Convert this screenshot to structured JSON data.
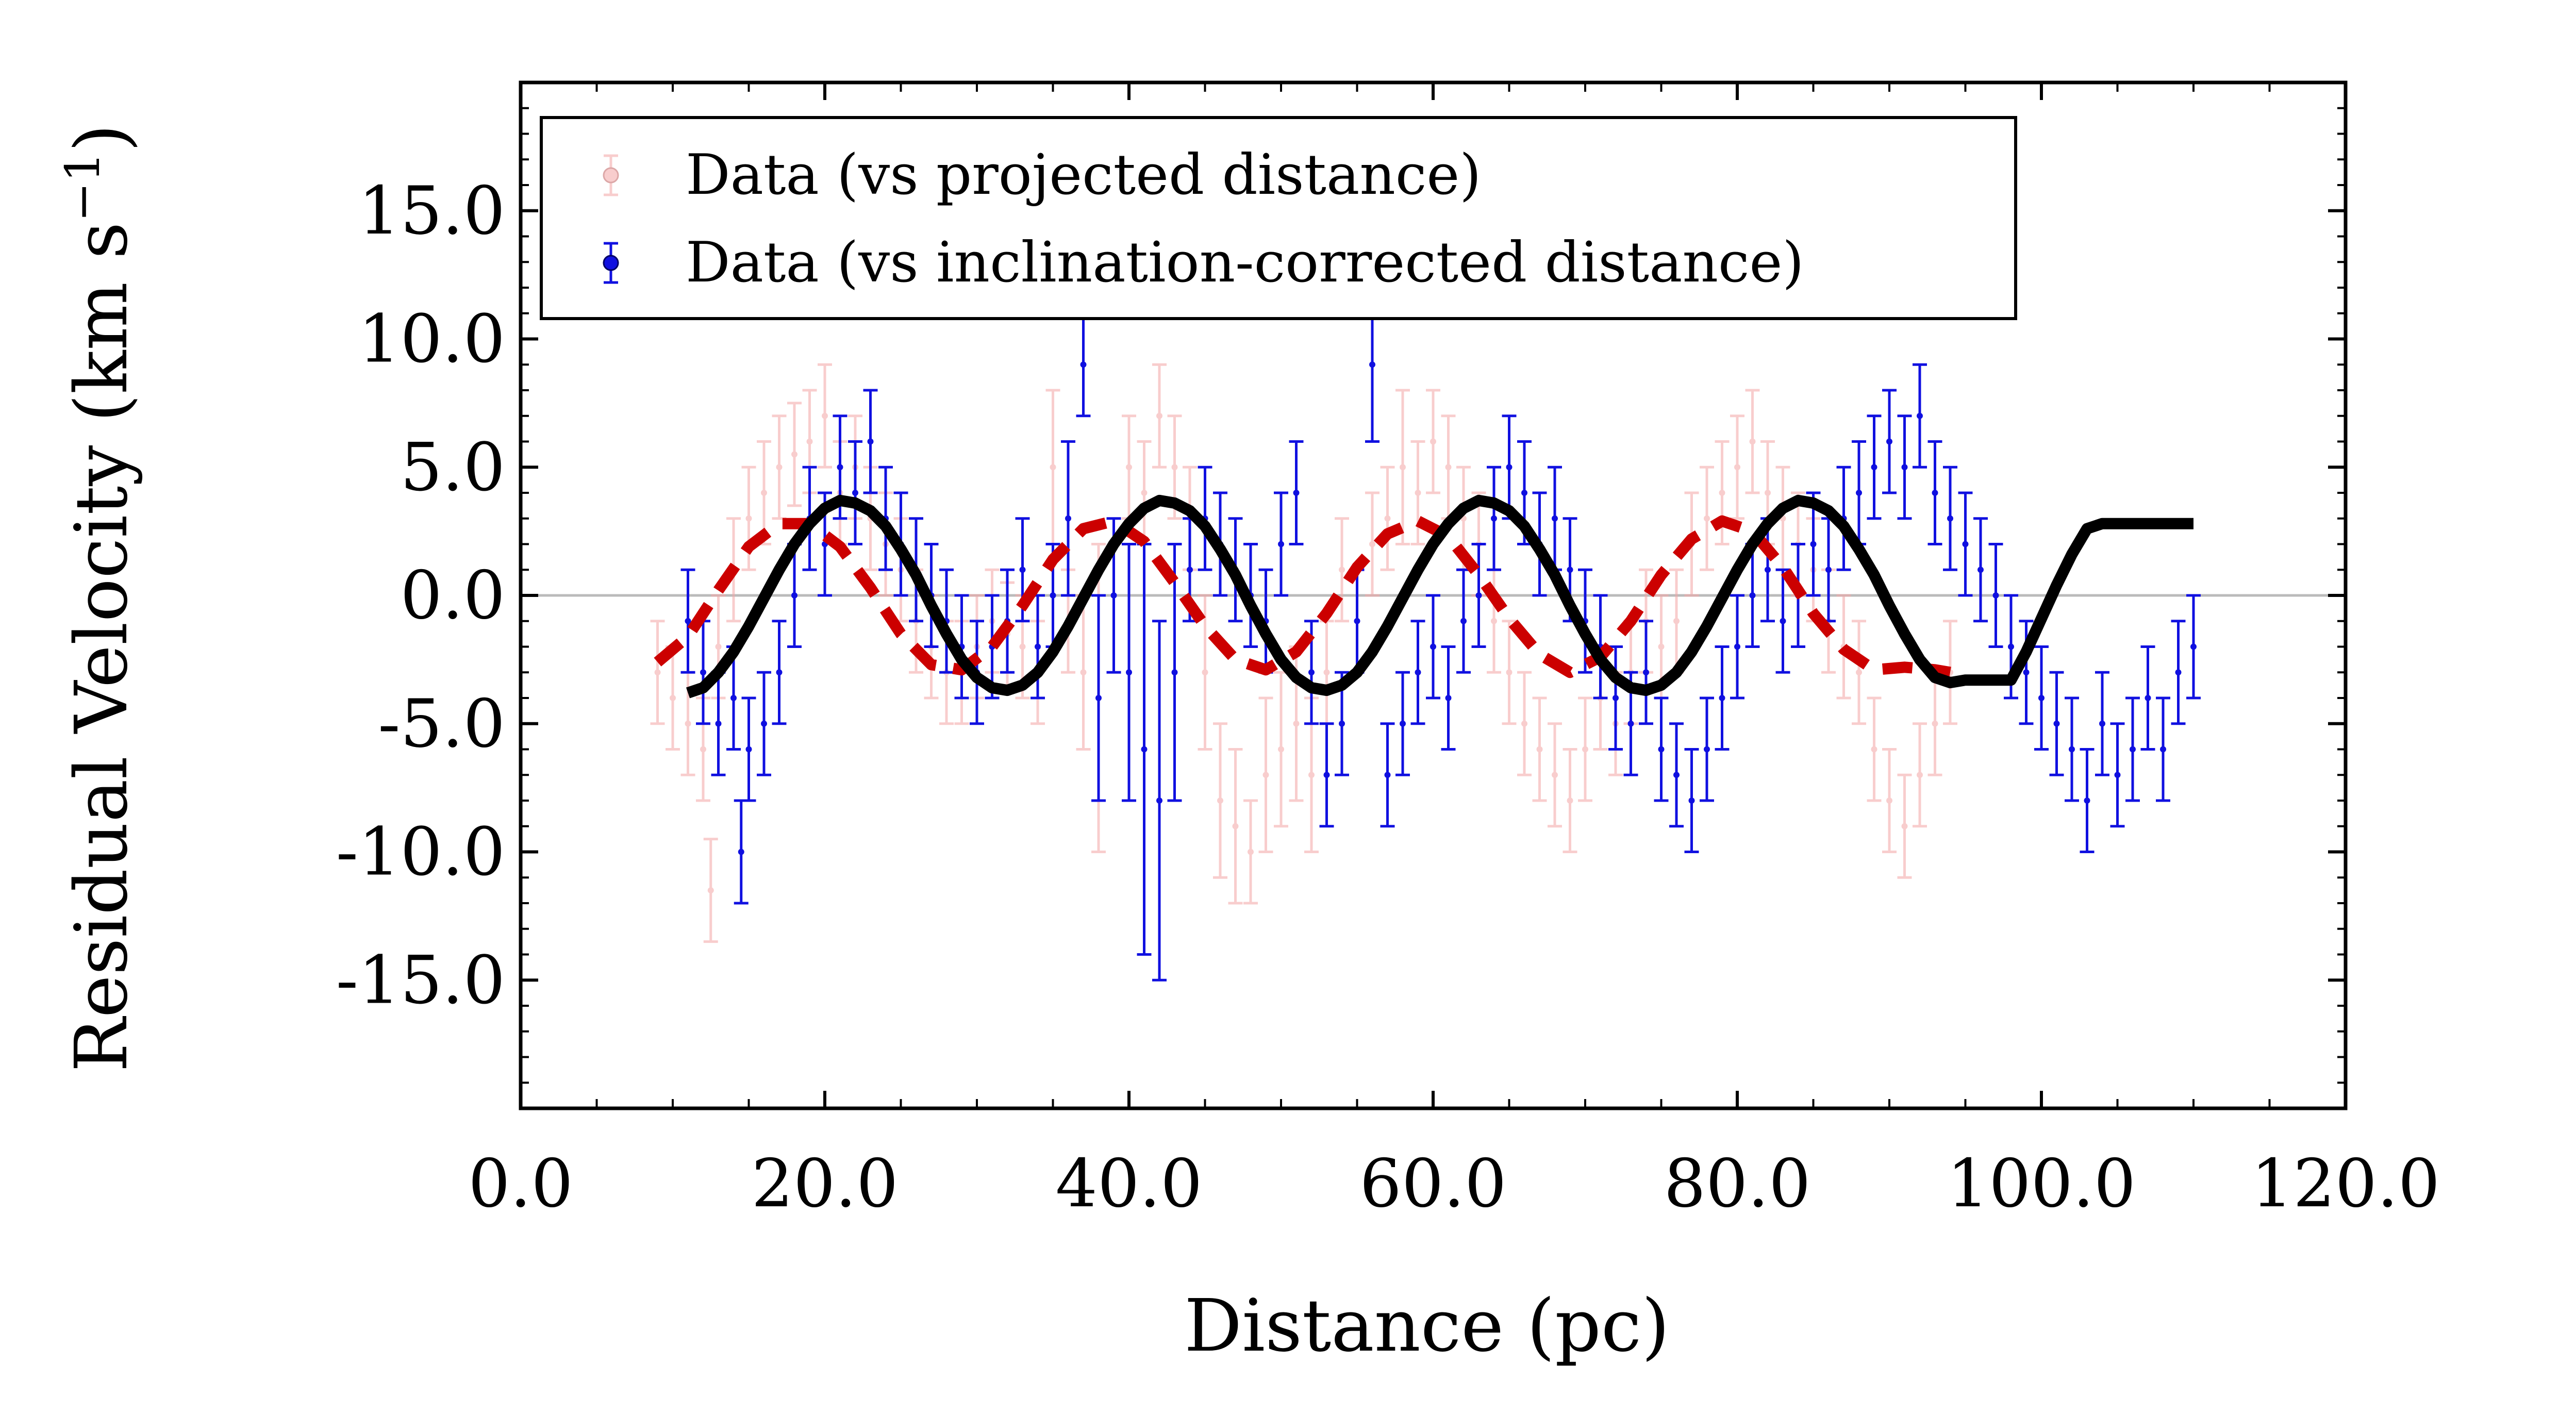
{
  "chart_data": {
    "type": "scatter",
    "xlabel": "Distance (pc)",
    "ylabel_main": "Residual Velocity (km s",
    "ylabel_sup": "−1",
    "ylabel_close": ")",
    "xlim": [
      0,
      120
    ],
    "ylim": [
      -20,
      20
    ],
    "xticks": [
      "0.0",
      "20.0",
      "40.0",
      "60.0",
      "80.0",
      "100.0",
      "120.0"
    ],
    "yticks": [
      "15.0",
      "10.0",
      "5.0",
      "0.0",
      "-5.0",
      "-10.0",
      "-15.0"
    ],
    "ytick_values": [
      15,
      10,
      5,
      0,
      -5,
      -10,
      -15
    ],
    "xtick_values": [
      0,
      20,
      40,
      60,
      80,
      100,
      120
    ],
    "zero_line": 0,
    "legend": {
      "placement": "top-left",
      "entries": [
        {
          "label": "Data (vs projected distance)",
          "color": "#f4a6a6"
        },
        {
          "label": "Data (vs inclination-corrected distance)",
          "color": "#1010e0"
        }
      ]
    },
    "series": [
      {
        "name": "Data (vs projected distance)",
        "color": "#f4a6a6",
        "points": [
          [
            9,
            -3,
            2
          ],
          [
            10,
            -4,
            2
          ],
          [
            11,
            -5,
            2
          ],
          [
            12,
            -6,
            2
          ],
          [
            12.5,
            -11.5,
            2
          ],
          [
            13,
            -2,
            2
          ],
          [
            14,
            1,
            2
          ],
          [
            15,
            3,
            2
          ],
          [
            16,
            4,
            2
          ],
          [
            17,
            5,
            2
          ],
          [
            18,
            5.5,
            2
          ],
          [
            19,
            6,
            2
          ],
          [
            20,
            7,
            2
          ],
          [
            21,
            4,
            2
          ],
          [
            22,
            5,
            2
          ],
          [
            23,
            3,
            2
          ],
          [
            24,
            2,
            2
          ],
          [
            25,
            1,
            2
          ],
          [
            26,
            -1,
            2
          ],
          [
            27,
            -2,
            2
          ],
          [
            28,
            -3,
            2
          ],
          [
            29,
            -3,
            2
          ],
          [
            30,
            -2,
            2
          ],
          [
            31,
            -1,
            2
          ],
          [
            32,
            -1.5,
            2
          ],
          [
            33,
            -2,
            2
          ],
          [
            34,
            -3,
            2
          ],
          [
            35,
            5,
            3
          ],
          [
            36,
            -1,
            2
          ],
          [
            37,
            -3,
            3
          ],
          [
            38,
            -4,
            6
          ],
          [
            39,
            0,
            3
          ],
          [
            40,
            5,
            2
          ],
          [
            41,
            4,
            2
          ],
          [
            42,
            7,
            2
          ],
          [
            43,
            5,
            2
          ],
          [
            44,
            3,
            2
          ],
          [
            45,
            -3,
            3
          ],
          [
            46,
            -8,
            3
          ],
          [
            47,
            -9,
            3
          ],
          [
            48,
            -10,
            2
          ],
          [
            49,
            -7,
            3
          ],
          [
            50,
            -6,
            3
          ],
          [
            51,
            -5,
            3
          ],
          [
            52,
            -7,
            3
          ],
          [
            53,
            -3,
            2
          ],
          [
            54,
            1,
            2
          ],
          [
            55,
            -1,
            2
          ],
          [
            56,
            2,
            2
          ],
          [
            57,
            3,
            2
          ],
          [
            58,
            5,
            3
          ],
          [
            59,
            4,
            2
          ],
          [
            60,
            6,
            2
          ],
          [
            61,
            5,
            2
          ],
          [
            62,
            3,
            2
          ],
          [
            63,
            2,
            2
          ],
          [
            64,
            -1,
            2
          ],
          [
            65,
            -3,
            2
          ],
          [
            66,
            -5,
            2
          ],
          [
            67,
            -6,
            2
          ],
          [
            68,
            -7,
            2
          ],
          [
            69,
            -8,
            2
          ],
          [
            70,
            -6,
            2
          ],
          [
            71,
            -4,
            2
          ],
          [
            72,
            -5,
            2
          ],
          [
            73,
            -3,
            2
          ],
          [
            74,
            -1,
            2
          ],
          [
            75,
            -2,
            2
          ],
          [
            76,
            -1,
            2
          ],
          [
            77,
            2,
            2
          ],
          [
            78,
            3,
            2
          ],
          [
            79,
            4,
            2
          ],
          [
            80,
            5,
            2
          ],
          [
            81,
            6,
            2
          ],
          [
            82,
            4,
            2
          ],
          [
            83,
            3,
            2
          ],
          [
            84,
            2,
            2
          ],
          [
            85,
            1,
            2
          ],
          [
            86,
            -1,
            2
          ],
          [
            87,
            -2,
            2
          ],
          [
            88,
            -3,
            2
          ],
          [
            89,
            -6,
            2
          ],
          [
            90,
            -8,
            2
          ],
          [
            91,
            -9,
            2
          ],
          [
            92,
            -7,
            2
          ],
          [
            93,
            -5,
            2
          ],
          [
            94,
            -3,
            2
          ]
        ]
      },
      {
        "name": "Data (vs inclination-corrected distance)",
        "color": "#1010e0",
        "points": [
          [
            11,
            -1,
            2
          ],
          [
            12,
            -3,
            2
          ],
          [
            13,
            -5,
            2
          ],
          [
            14,
            -4,
            2
          ],
          [
            14.5,
            -10,
            2
          ],
          [
            15,
            -6,
            2
          ],
          [
            16,
            -5,
            2
          ],
          [
            17,
            -3,
            2
          ],
          [
            18,
            0,
            2
          ],
          [
            19,
            3,
            2
          ],
          [
            20,
            2,
            2
          ],
          [
            21,
            5,
            2
          ],
          [
            22,
            4,
            2
          ],
          [
            23,
            6,
            2
          ],
          [
            24,
            3,
            2
          ],
          [
            25,
            2,
            2
          ],
          [
            26,
            1,
            2
          ],
          [
            27,
            0,
            2
          ],
          [
            28,
            -1,
            2
          ],
          [
            29,
            -2,
            2
          ],
          [
            30,
            -3,
            2
          ],
          [
            31,
            -2,
            2
          ],
          [
            32,
            -1,
            2
          ],
          [
            33,
            1,
            2
          ],
          [
            34,
            -2,
            2
          ],
          [
            35,
            0,
            2
          ],
          [
            36,
            3,
            3
          ],
          [
            37,
            9,
            2
          ],
          [
            38,
            -4,
            4
          ],
          [
            39,
            0,
            3
          ],
          [
            40,
            -3,
            5
          ],
          [
            41,
            -6,
            8
          ],
          [
            42,
            -8,
            7
          ],
          [
            43,
            -3,
            5
          ],
          [
            44,
            1,
            2
          ],
          [
            45,
            3,
            2
          ],
          [
            46,
            2,
            2
          ],
          [
            47,
            1,
            2
          ],
          [
            48,
            0,
            2
          ],
          [
            49,
            -1,
            2
          ],
          [
            50,
            2,
            2
          ],
          [
            51,
            4,
            2
          ],
          [
            52,
            -3,
            2
          ],
          [
            53,
            -7,
            2
          ],
          [
            54,
            -5,
            2
          ],
          [
            55,
            -1,
            2
          ],
          [
            56,
            9,
            3
          ],
          [
            57,
            -7,
            2
          ],
          [
            58,
            -5,
            2
          ],
          [
            59,
            -3,
            2
          ],
          [
            60,
            -2,
            2
          ],
          [
            61,
            -4,
            2
          ],
          [
            62,
            -1,
            2
          ],
          [
            63,
            0,
            2
          ],
          [
            64,
            3,
            2
          ],
          [
            65,
            5,
            2
          ],
          [
            66,
            4,
            2
          ],
          [
            67,
            2,
            2
          ],
          [
            68,
            3,
            2
          ],
          [
            69,
            1,
            2
          ],
          [
            70,
            -1,
            2
          ],
          [
            71,
            -2,
            2
          ],
          [
            72,
            -4,
            2
          ],
          [
            73,
            -5,
            2
          ],
          [
            74,
            -3,
            2
          ],
          [
            75,
            -6,
            2
          ],
          [
            76,
            -7,
            2
          ],
          [
            77,
            -8,
            2
          ],
          [
            78,
            -6,
            2
          ],
          [
            79,
            -4,
            2
          ],
          [
            80,
            -2,
            2
          ],
          [
            81,
            0,
            2
          ],
          [
            82,
            1,
            2
          ],
          [
            83,
            -1,
            2
          ],
          [
            84,
            0,
            2
          ],
          [
            85,
            2,
            2
          ],
          [
            86,
            1,
            2
          ],
          [
            87,
            3,
            2
          ],
          [
            88,
            4,
            2
          ],
          [
            89,
            5,
            2
          ],
          [
            90,
            6,
            2
          ],
          [
            91,
            5,
            2
          ],
          [
            92,
            7,
            2
          ],
          [
            93,
            4,
            2
          ],
          [
            94,
            3,
            2
          ],
          [
            95,
            2,
            2
          ],
          [
            96,
            1,
            2
          ],
          [
            97,
            0,
            2
          ],
          [
            98,
            -2,
            2
          ],
          [
            99,
            -3,
            2
          ],
          [
            100,
            -4,
            2
          ],
          [
            101,
            -5,
            2
          ],
          [
            102,
            -6,
            2
          ],
          [
            103,
            -8,
            2
          ],
          [
            104,
            -5,
            2
          ],
          [
            105,
            -7,
            2
          ],
          [
            106,
            -6,
            2
          ],
          [
            107,
            -4,
            2
          ],
          [
            108,
            -6,
            2
          ],
          [
            109,
            -3,
            2
          ],
          [
            110,
            -2,
            2
          ]
        ]
      },
      {
        "color": "#cc0000",
        "style": "dashed",
        "x": [
          9,
          11,
          13,
          15,
          17,
          19,
          21,
          23,
          25,
          27,
          29,
          31,
          33,
          35,
          37,
          39,
          41,
          43,
          45,
          47,
          49,
          51,
          53,
          55,
          57,
          59,
          61,
          63,
          65,
          67,
          69,
          71,
          73,
          75,
          77,
          79,
          81,
          83,
          85,
          87,
          89,
          91,
          93,
          94
        ],
        "y": [
          -2.6,
          -1.6,
          0.2,
          1.9,
          2.8,
          2.8,
          1.9,
          0.3,
          -1.5,
          -2.7,
          -2.9,
          -2.0,
          -0.4,
          1.4,
          2.6,
          2.9,
          2.1,
          0.5,
          -1.2,
          -2.5,
          -2.9,
          -2.2,
          -0.7,
          1.1,
          2.4,
          2.9,
          2.3,
          0.8,
          -0.9,
          -2.3,
          -3.0,
          -2.4,
          -1.0,
          0.8,
          2.2,
          2.9,
          2.5,
          1.1,
          -0.7,
          -2.1,
          -2.9,
          -2.8,
          -2.9,
          -3.0
        ]
      },
      {
        "color": "#000000",
        "style": "solid",
        "x": [
          11,
          12,
          13,
          14,
          15,
          16,
          17,
          18,
          19,
          20,
          21,
          22,
          23,
          24,
          25,
          26,
          27,
          28,
          29,
          30,
          31,
          32,
          33,
          34,
          35,
          36,
          37,
          38,
          39,
          40,
          41,
          42,
          43,
          44,
          45,
          46,
          47,
          48,
          49,
          50,
          51,
          52,
          53,
          54,
          55,
          56,
          57,
          58,
          59,
          60,
          61,
          62,
          63,
          64,
          65,
          66,
          67,
          68,
          69,
          70,
          71,
          72,
          73,
          74,
          75,
          76,
          77,
          78,
          79,
          80,
          81,
          82,
          83,
          84,
          85,
          86,
          87,
          88,
          89,
          90,
          91,
          92,
          93,
          94,
          95,
          96,
          97,
          98,
          99,
          100,
          101,
          102,
          103,
          104,
          105,
          106,
          107,
          108,
          109,
          110
        ],
        "y": [
          -3.8,
          -3.6,
          -3.0,
          -2.2,
          -1.2,
          -0.1,
          1.0,
          2.0,
          2.8,
          3.4,
          3.7,
          3.6,
          3.3,
          2.7,
          1.8,
          0.8,
          -0.4,
          -1.5,
          -2.5,
          -3.2,
          -3.6,
          -3.7,
          -3.5,
          -3.0,
          -2.2,
          -1.2,
          -0.1,
          1.0,
          2.0,
          2.8,
          3.4,
          3.7,
          3.6,
          3.3,
          2.7,
          1.8,
          0.8,
          -0.4,
          -1.5,
          -2.5,
          -3.2,
          -3.6,
          -3.7,
          -3.5,
          -3.0,
          -2.2,
          -1.2,
          -0.1,
          1.0,
          2.0,
          2.8,
          3.4,
          3.7,
          3.6,
          3.3,
          2.7,
          1.8,
          0.8,
          -0.4,
          -1.5,
          -2.5,
          -3.2,
          -3.6,
          -3.7,
          -3.5,
          -3.0,
          -2.2,
          -1.2,
          -0.1,
          1.0,
          2.0,
          2.8,
          3.4,
          3.7,
          3.6,
          3.3,
          2.7,
          1.8,
          0.8,
          -0.4,
          -1.5,
          -2.5,
          -3.2,
          -3.4,
          -3.3,
          -3.3,
          -3.3,
          -3.3,
          -2.2,
          -0.9,
          0.4,
          1.6,
          2.6,
          2.8,
          2.8,
          2.8,
          2.8,
          2.8,
          2.8,
          2.8
        ]
      }
    ]
  }
}
